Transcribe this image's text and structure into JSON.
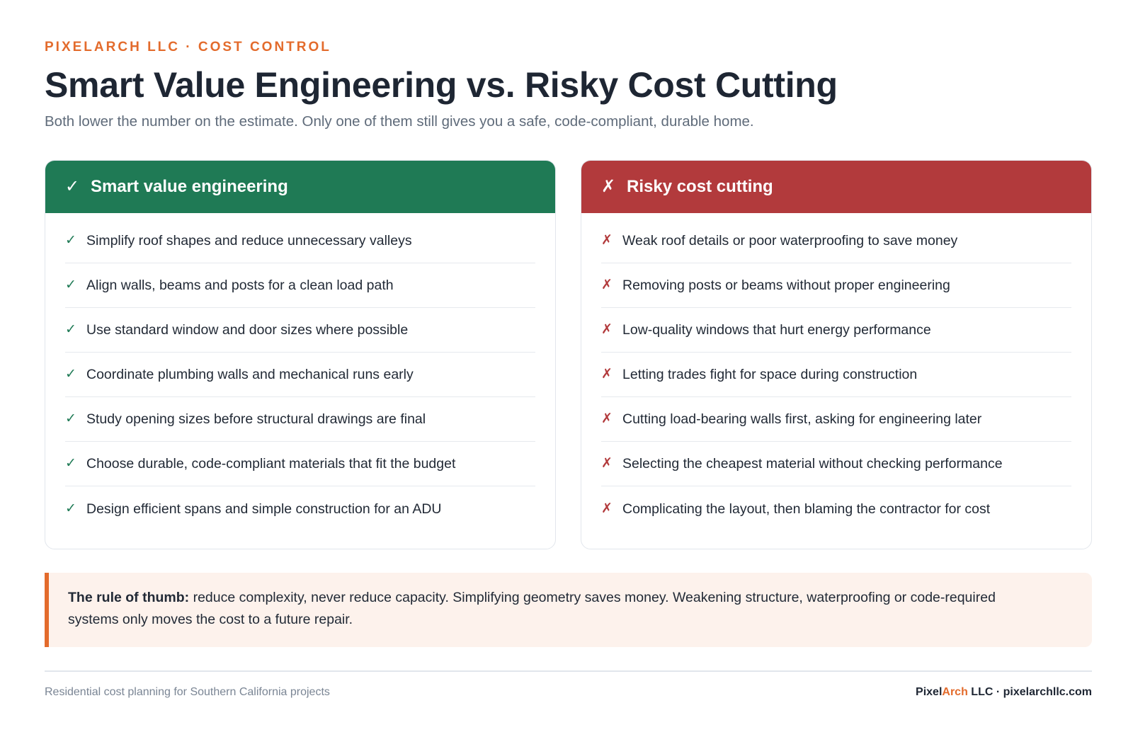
{
  "header": {
    "eyebrow": "PIXELARCH LLC · COST CONTROL",
    "title": "Smart Value Engineering vs. Risky Cost Cutting",
    "subtitle": "Both lower the number on the estimate. Only one of them still gives you a safe, code-compliant, durable home."
  },
  "columns": {
    "good": {
      "icon_glyph": "✓",
      "icon": "check-icon",
      "title": "Smart value engineering",
      "color": "#1f7a55",
      "items": [
        "Simplify roof shapes and reduce unnecessary valleys",
        "Align walls, beams and posts for a clean load path",
        "Use standard window and door sizes where possible",
        "Coordinate plumbing walls and mechanical runs early",
        "Study opening sizes before structural drawings are final",
        "Choose durable, code-compliant materials that fit the budget",
        "Design efficient spans and simple construction for an ADU"
      ]
    },
    "bad": {
      "icon_glyph": "✗",
      "icon": "cross-icon",
      "title": "Risky cost cutting",
      "color": "#b23a3c",
      "items": [
        "Weak roof details or poor waterproofing to save money",
        "Removing posts or beams without proper engineering",
        "Low-quality windows that hurt energy performance",
        "Letting trades fight for space during construction",
        "Cutting load-bearing walls first, asking for engineering later",
        "Selecting the cheapest material without checking performance",
        "Complicating the layout, then blaming the contractor for cost"
      ]
    }
  },
  "callout": {
    "lead": "The rule of thumb:",
    "text": " reduce complexity, never reduce capacity. Simplifying geometry saves money. Weakening structure, waterproofing or code-required systems only moves the cost to a future repair.",
    "accent_color": "#e36b2c"
  },
  "footer": {
    "left": "Residential cost planning for Southern California projects",
    "brand_part1": "Pixel",
    "brand_part2": "Arch",
    "brand_part3": " LLC · pixelarchllc.com"
  }
}
